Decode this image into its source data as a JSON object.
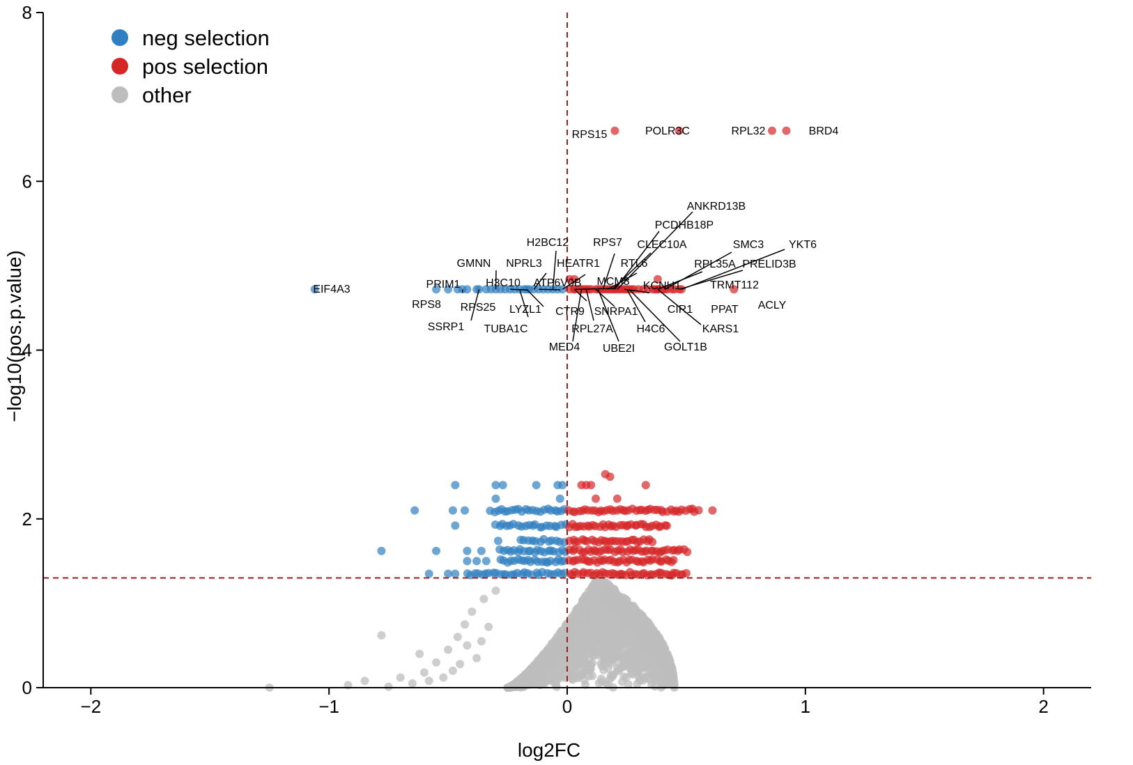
{
  "chart_data": {
    "type": "scatter",
    "xlabel": "log2FC",
    "ylabel": "−log10(pos.p.value)",
    "xlim": [
      -2.2,
      2.2
    ],
    "ylim": [
      0,
      8
    ],
    "x_ticks": [
      "−2",
      "−1",
      "0",
      "1",
      "2"
    ],
    "x_tick_values": [
      -2,
      -1,
      0,
      1,
      2
    ],
    "y_ticks": [
      "0",
      "2",
      "4",
      "6",
      "8"
    ],
    "y_tick_values": [
      0,
      2,
      4,
      6,
      8
    ],
    "thresholds": {
      "x": 0,
      "y": 1.3
    },
    "grid": false,
    "legend_position": "top-left",
    "colors": {
      "neg": "#2f7fc1",
      "pos": "#d62728",
      "other": "#bdbdbd",
      "threshold": "#9e1b1b"
    },
    "legend": [
      {
        "key": "neg",
        "label": "neg selection"
      },
      {
        "key": "pos",
        "label": "pos selection"
      },
      {
        "key": "other",
        "label": "other"
      }
    ],
    "labeled_points": [
      {
        "gene": "RPS15",
        "x": 0.2,
        "y": 6.6,
        "group": "pos"
      },
      {
        "gene": "POLR3C",
        "x": 0.47,
        "y": 6.6,
        "group": "pos"
      },
      {
        "gene": "RPL32",
        "x": 0.86,
        "y": 6.6,
        "group": "pos"
      },
      {
        "gene": "BRD4",
        "x": 0.92,
        "y": 6.6,
        "group": "pos"
      },
      {
        "gene": "EIF4A3",
        "x": -1.06,
        "y": 4.72,
        "group": "neg"
      },
      {
        "gene": "ACLY",
        "x": 0.7,
        "y": 4.72,
        "group": "pos"
      },
      {
        "gene": "PRIM1",
        "x": -0.44,
        "y": 4.72,
        "group": "neg"
      },
      {
        "gene": "RPS8",
        "x": -0.55,
        "y": 4.72,
        "group": "neg"
      },
      {
        "gene": "SSRP1",
        "x": -0.37,
        "y": 4.72,
        "group": "neg"
      },
      {
        "gene": "RPS25",
        "x": -0.38,
        "y": 4.72,
        "group": "neg"
      },
      {
        "gene": "GMNN",
        "x": -0.3,
        "y": 4.72,
        "group": "neg"
      },
      {
        "gene": "H3C10",
        "x": -0.24,
        "y": 4.72,
        "group": "neg"
      },
      {
        "gene": "TUBA1C",
        "x": -0.2,
        "y": 4.72,
        "group": "neg"
      },
      {
        "gene": "NPRL3",
        "x": -0.14,
        "y": 4.72,
        "group": "neg"
      },
      {
        "gene": "LYZL1",
        "x": -0.17,
        "y": 4.72,
        "group": "neg"
      },
      {
        "gene": "ATP6V0B",
        "x": -0.12,
        "y": 4.72,
        "group": "neg"
      },
      {
        "gene": "H2BC12",
        "x": -0.06,
        "y": 4.72,
        "group": "neg"
      },
      {
        "gene": "HEATR1",
        "x": -0.02,
        "y": 4.72,
        "group": "neg"
      },
      {
        "gene": "CTR9",
        "x": 0.03,
        "y": 4.72,
        "group": "pos"
      },
      {
        "gene": "MED4",
        "x": 0.06,
        "y": 4.72,
        "group": "pos"
      },
      {
        "gene": "RPL27A",
        "x": 0.08,
        "y": 4.72,
        "group": "pos"
      },
      {
        "gene": "MCM8",
        "x": 0.03,
        "y": 4.72,
        "group": "pos"
      },
      {
        "gene": "RPS7",
        "x": 0.15,
        "y": 4.72,
        "group": "pos"
      },
      {
        "gene": "SNRPA1",
        "x": 0.12,
        "y": 4.72,
        "group": "pos"
      },
      {
        "gene": "UBE2I",
        "x": 0.13,
        "y": 4.72,
        "group": "pos"
      },
      {
        "gene": "RTL6",
        "x": 0.17,
        "y": 4.72,
        "group": "pos"
      },
      {
        "gene": "CLEC10A",
        "x": 0.19,
        "y": 4.72,
        "group": "pos"
      },
      {
        "gene": "PCDHB18P",
        "x": 0.2,
        "y": 4.72,
        "group": "pos"
      },
      {
        "gene": "ANKRD13B",
        "x": 0.21,
        "y": 4.72,
        "group": "pos"
      },
      {
        "gene": "KCNH1",
        "x": 0.24,
        "y": 4.72,
        "group": "pos"
      },
      {
        "gene": "H4C6",
        "x": 0.25,
        "y": 4.72,
        "group": "pos"
      },
      {
        "gene": "GOLT1B",
        "x": 0.26,
        "y": 4.72,
        "group": "pos"
      },
      {
        "gene": "CIR1",
        "x": 0.37,
        "y": 4.72,
        "group": "pos"
      },
      {
        "gene": "KARS1",
        "x": 0.38,
        "y": 4.72,
        "group": "pos"
      },
      {
        "gene": "RPL35A",
        "x": 0.38,
        "y": 4.72,
        "group": "pos"
      },
      {
        "gene": "SMC3",
        "x": 0.41,
        "y": 4.72,
        "group": "pos"
      },
      {
        "gene": "TRMT112",
        "x": 0.44,
        "y": 4.72,
        "group": "pos"
      },
      {
        "gene": "PPAT",
        "x": 0.45,
        "y": 4.72,
        "group": "pos"
      },
      {
        "gene": "PRELID3B",
        "x": 0.47,
        "y": 4.72,
        "group": "pos"
      },
      {
        "gene": "YKT6",
        "x": 0.48,
        "y": 4.72,
        "group": "pos"
      }
    ],
    "cluster_extra_points": [
      {
        "x": -0.5,
        "y": 4.72,
        "group": "neg"
      },
      {
        "x": -0.46,
        "y": 4.72,
        "group": "neg"
      },
      {
        "x": -0.42,
        "y": 4.72,
        "group": "neg"
      },
      {
        "x": -0.34,
        "y": 4.72,
        "group": "neg"
      },
      {
        "x": -0.32,
        "y": 4.72,
        "group": "neg"
      },
      {
        "x": -0.28,
        "y": 4.72,
        "group": "neg"
      },
      {
        "x": -0.26,
        "y": 4.72,
        "group": "neg"
      },
      {
        "x": -0.22,
        "y": 4.72,
        "group": "neg"
      },
      {
        "x": -0.18,
        "y": 4.72,
        "group": "neg"
      },
      {
        "x": -0.16,
        "y": 4.72,
        "group": "neg"
      },
      {
        "x": -0.1,
        "y": 4.72,
        "group": "neg"
      },
      {
        "x": -0.08,
        "y": 4.72,
        "group": "neg"
      },
      {
        "x": -0.04,
        "y": 4.72,
        "group": "neg"
      },
      {
        "x": 0.01,
        "y": 4.72,
        "group": "pos"
      },
      {
        "x": 0.05,
        "y": 4.72,
        "group": "pos"
      },
      {
        "x": 0.07,
        "y": 4.72,
        "group": "pos"
      },
      {
        "x": 0.09,
        "y": 4.72,
        "group": "pos"
      },
      {
        "x": 0.1,
        "y": 4.72,
        "group": "pos"
      },
      {
        "x": 0.14,
        "y": 4.72,
        "group": "pos"
      },
      {
        "x": 0.16,
        "y": 4.72,
        "group": "pos"
      },
      {
        "x": 0.18,
        "y": 4.72,
        "group": "pos"
      },
      {
        "x": 0.22,
        "y": 4.72,
        "group": "pos"
      },
      {
        "x": 0.23,
        "y": 4.72,
        "group": "pos"
      },
      {
        "x": 0.27,
        "y": 4.72,
        "group": "pos"
      },
      {
        "x": 0.28,
        "y": 4.72,
        "group": "pos"
      },
      {
        "x": 0.3,
        "y": 4.72,
        "group": "pos"
      },
      {
        "x": 0.32,
        "y": 4.72,
        "group": "pos"
      },
      {
        "x": 0.34,
        "y": 4.72,
        "group": "pos"
      },
      {
        "x": 0.36,
        "y": 4.72,
        "group": "pos"
      },
      {
        "x": 0.4,
        "y": 4.72,
        "group": "pos"
      },
      {
        "x": 0.42,
        "y": 4.72,
        "group": "pos"
      },
      {
        "x": 0.01,
        "y": 4.84,
        "group": "pos"
      },
      {
        "x": 0.03,
        "y": 4.84,
        "group": "pos"
      },
      {
        "x": 0.38,
        "y": 4.84,
        "group": "pos"
      }
    ],
    "bands": [
      {
        "y": 2.1,
        "groups": [
          {
            "group": "neg",
            "xmin": -0.32,
            "xmax": -0.01,
            "n": 22,
            "extra": [
              -0.64,
              -0.48,
              -0.43
            ]
          },
          {
            "group": "pos",
            "xmin": 0.01,
            "xmax": 0.55,
            "n": 42,
            "extra": [
              0.61
            ]
          }
        ]
      },
      {
        "y": 1.92,
        "groups": [
          {
            "group": "neg",
            "xmin": -0.3,
            "xmax": -0.01,
            "n": 20,
            "extra": [
              -0.47
            ]
          },
          {
            "group": "pos",
            "xmin": 0.01,
            "xmax": 0.42,
            "n": 34,
            "extra": []
          }
        ]
      },
      {
        "y": 1.74,
        "groups": [
          {
            "group": "neg",
            "xmin": -0.2,
            "xmax": -0.01,
            "n": 12,
            "extra": [
              -0.29
            ]
          },
          {
            "group": "pos",
            "xmin": 0.01,
            "xmax": 0.36,
            "n": 28,
            "extra": []
          }
        ]
      },
      {
        "y": 1.62,
        "groups": [
          {
            "group": "neg",
            "xmin": -0.28,
            "xmax": -0.01,
            "n": 20,
            "extra": [
              -0.78,
              -0.55,
              -0.42,
              -0.36
            ]
          },
          {
            "group": "pos",
            "xmin": 0.01,
            "xmax": 0.5,
            "n": 40,
            "extra": []
          }
        ]
      },
      {
        "y": 1.5,
        "groups": [
          {
            "group": "neg",
            "xmin": -0.28,
            "xmax": -0.01,
            "n": 20,
            "extra": [
              -0.42,
              -0.38,
              -0.34
            ]
          },
          {
            "group": "pos",
            "xmin": 0.01,
            "xmax": 0.45,
            "n": 36,
            "extra": []
          }
        ]
      },
      {
        "y": 1.35,
        "groups": [
          {
            "group": "neg",
            "xmin": -0.42,
            "xmax": -0.01,
            "n": 28,
            "extra": [
              -0.58,
              -0.5,
              -0.47
            ]
          },
          {
            "group": "pos",
            "xmin": 0.01,
            "xmax": 0.5,
            "n": 40,
            "extra": []
          }
        ]
      }
    ],
    "scattered_points": [
      {
        "x": -0.47,
        "y": 2.4,
        "group": "neg"
      },
      {
        "x": -0.3,
        "y": 2.4,
        "group": "neg"
      },
      {
        "x": -0.27,
        "y": 2.4,
        "group": "neg"
      },
      {
        "x": -0.13,
        "y": 2.4,
        "group": "neg"
      },
      {
        "x": -0.04,
        "y": 2.4,
        "group": "neg"
      },
      {
        "x": -0.02,
        "y": 2.4,
        "group": "neg"
      },
      {
        "x": -0.3,
        "y": 2.24,
        "group": "neg"
      },
      {
        "x": -0.03,
        "y": 2.24,
        "group": "neg"
      },
      {
        "x": 0.06,
        "y": 2.4,
        "group": "pos"
      },
      {
        "x": 0.08,
        "y": 2.4,
        "group": "pos"
      },
      {
        "x": 0.1,
        "y": 2.4,
        "group": "pos"
      },
      {
        "x": 0.33,
        "y": 2.4,
        "group": "pos"
      },
      {
        "x": 0.18,
        "y": 2.5,
        "group": "pos"
      },
      {
        "x": 0.16,
        "y": 2.53,
        "group": "pos"
      },
      {
        "x": 0.21,
        "y": 2.24,
        "group": "pos"
      },
      {
        "x": 0.12,
        "y": 2.24,
        "group": "pos"
      }
    ],
    "other_cloud": {
      "group": "other",
      "dense": {
        "xmin": -0.25,
        "xmax": 0.45,
        "ymin": 0.0,
        "ymax": 1.28,
        "n": 2400
      },
      "tail": [
        {
          "x": -0.78,
          "y": 0.62
        },
        {
          "x": -0.62,
          "y": 0.4
        },
        {
          "x": -0.85,
          "y": 0.08
        },
        {
          "x": -0.92,
          "y": 0.03
        },
        {
          "x": -0.7,
          "y": 0.12
        },
        {
          "x": -0.6,
          "y": 0.18
        },
        {
          "x": -0.55,
          "y": 0.3
        },
        {
          "x": -0.5,
          "y": 0.45
        },
        {
          "x": -0.46,
          "y": 0.6
        },
        {
          "x": -0.43,
          "y": 0.75
        },
        {
          "x": -0.4,
          "y": 0.9
        },
        {
          "x": -0.35,
          "y": 1.05
        },
        {
          "x": -0.3,
          "y": 1.15
        },
        {
          "x": -0.65,
          "y": 0.05
        },
        {
          "x": -0.75,
          "y": 0.01
        },
        {
          "x": -1.25,
          "y": 0.0
        },
        {
          "x": -0.58,
          "y": 0.08
        },
        {
          "x": -0.48,
          "y": 0.2
        },
        {
          "x": -0.38,
          "y": 0.35
        },
        {
          "x": -0.42,
          "y": 0.5
        },
        {
          "x": -0.33,
          "y": 0.72
        },
        {
          "x": -0.52,
          "y": 0.12
        },
        {
          "x": -0.45,
          "y": 0.28
        },
        {
          "x": -0.36,
          "y": 0.55
        }
      ]
    }
  }
}
